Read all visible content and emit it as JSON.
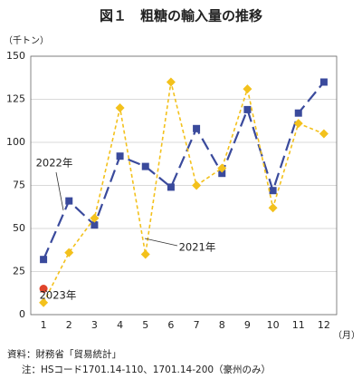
{
  "chart_data": {
    "type": "line",
    "title": "図１　粗糖の輸入量の推移",
    "y_label": "（千トン）",
    "x_label": "（月）",
    "categories": [
      "1",
      "2",
      "3",
      "4",
      "5",
      "6",
      "7",
      "8",
      "9",
      "10",
      "11",
      "12"
    ],
    "series": [
      {
        "name": "2022年",
        "color": "#3a4a9c",
        "marker": "square",
        "dash": "14 6",
        "values": [
          32,
          66,
          52,
          92,
          86,
          74,
          108,
          82,
          119,
          72,
          117,
          135
        ]
      },
      {
        "name": "2021年",
        "color": "#f3c11c",
        "marker": "diamond",
        "dash": "4 3",
        "values": [
          7,
          36,
          56,
          120,
          35,
          135,
          75,
          85,
          131,
          62,
          111,
          105
        ]
      },
      {
        "name": "2023年",
        "color": "#e0442a",
        "marker": "circle",
        "dash": "",
        "values": [
          15,
          null,
          null,
          null,
          null,
          null,
          null,
          null,
          null,
          null,
          null,
          null
        ]
      }
    ],
    "ylim": [
      0,
      150
    ],
    "yticks": [
      0,
      25,
      50,
      75,
      100,
      125,
      150
    ],
    "grid": true,
    "notes": [
      "資料：財務省「貿易統計」",
      "注：HSコード1701.14-110、1701.14-200（豪州のみ）"
    ]
  }
}
